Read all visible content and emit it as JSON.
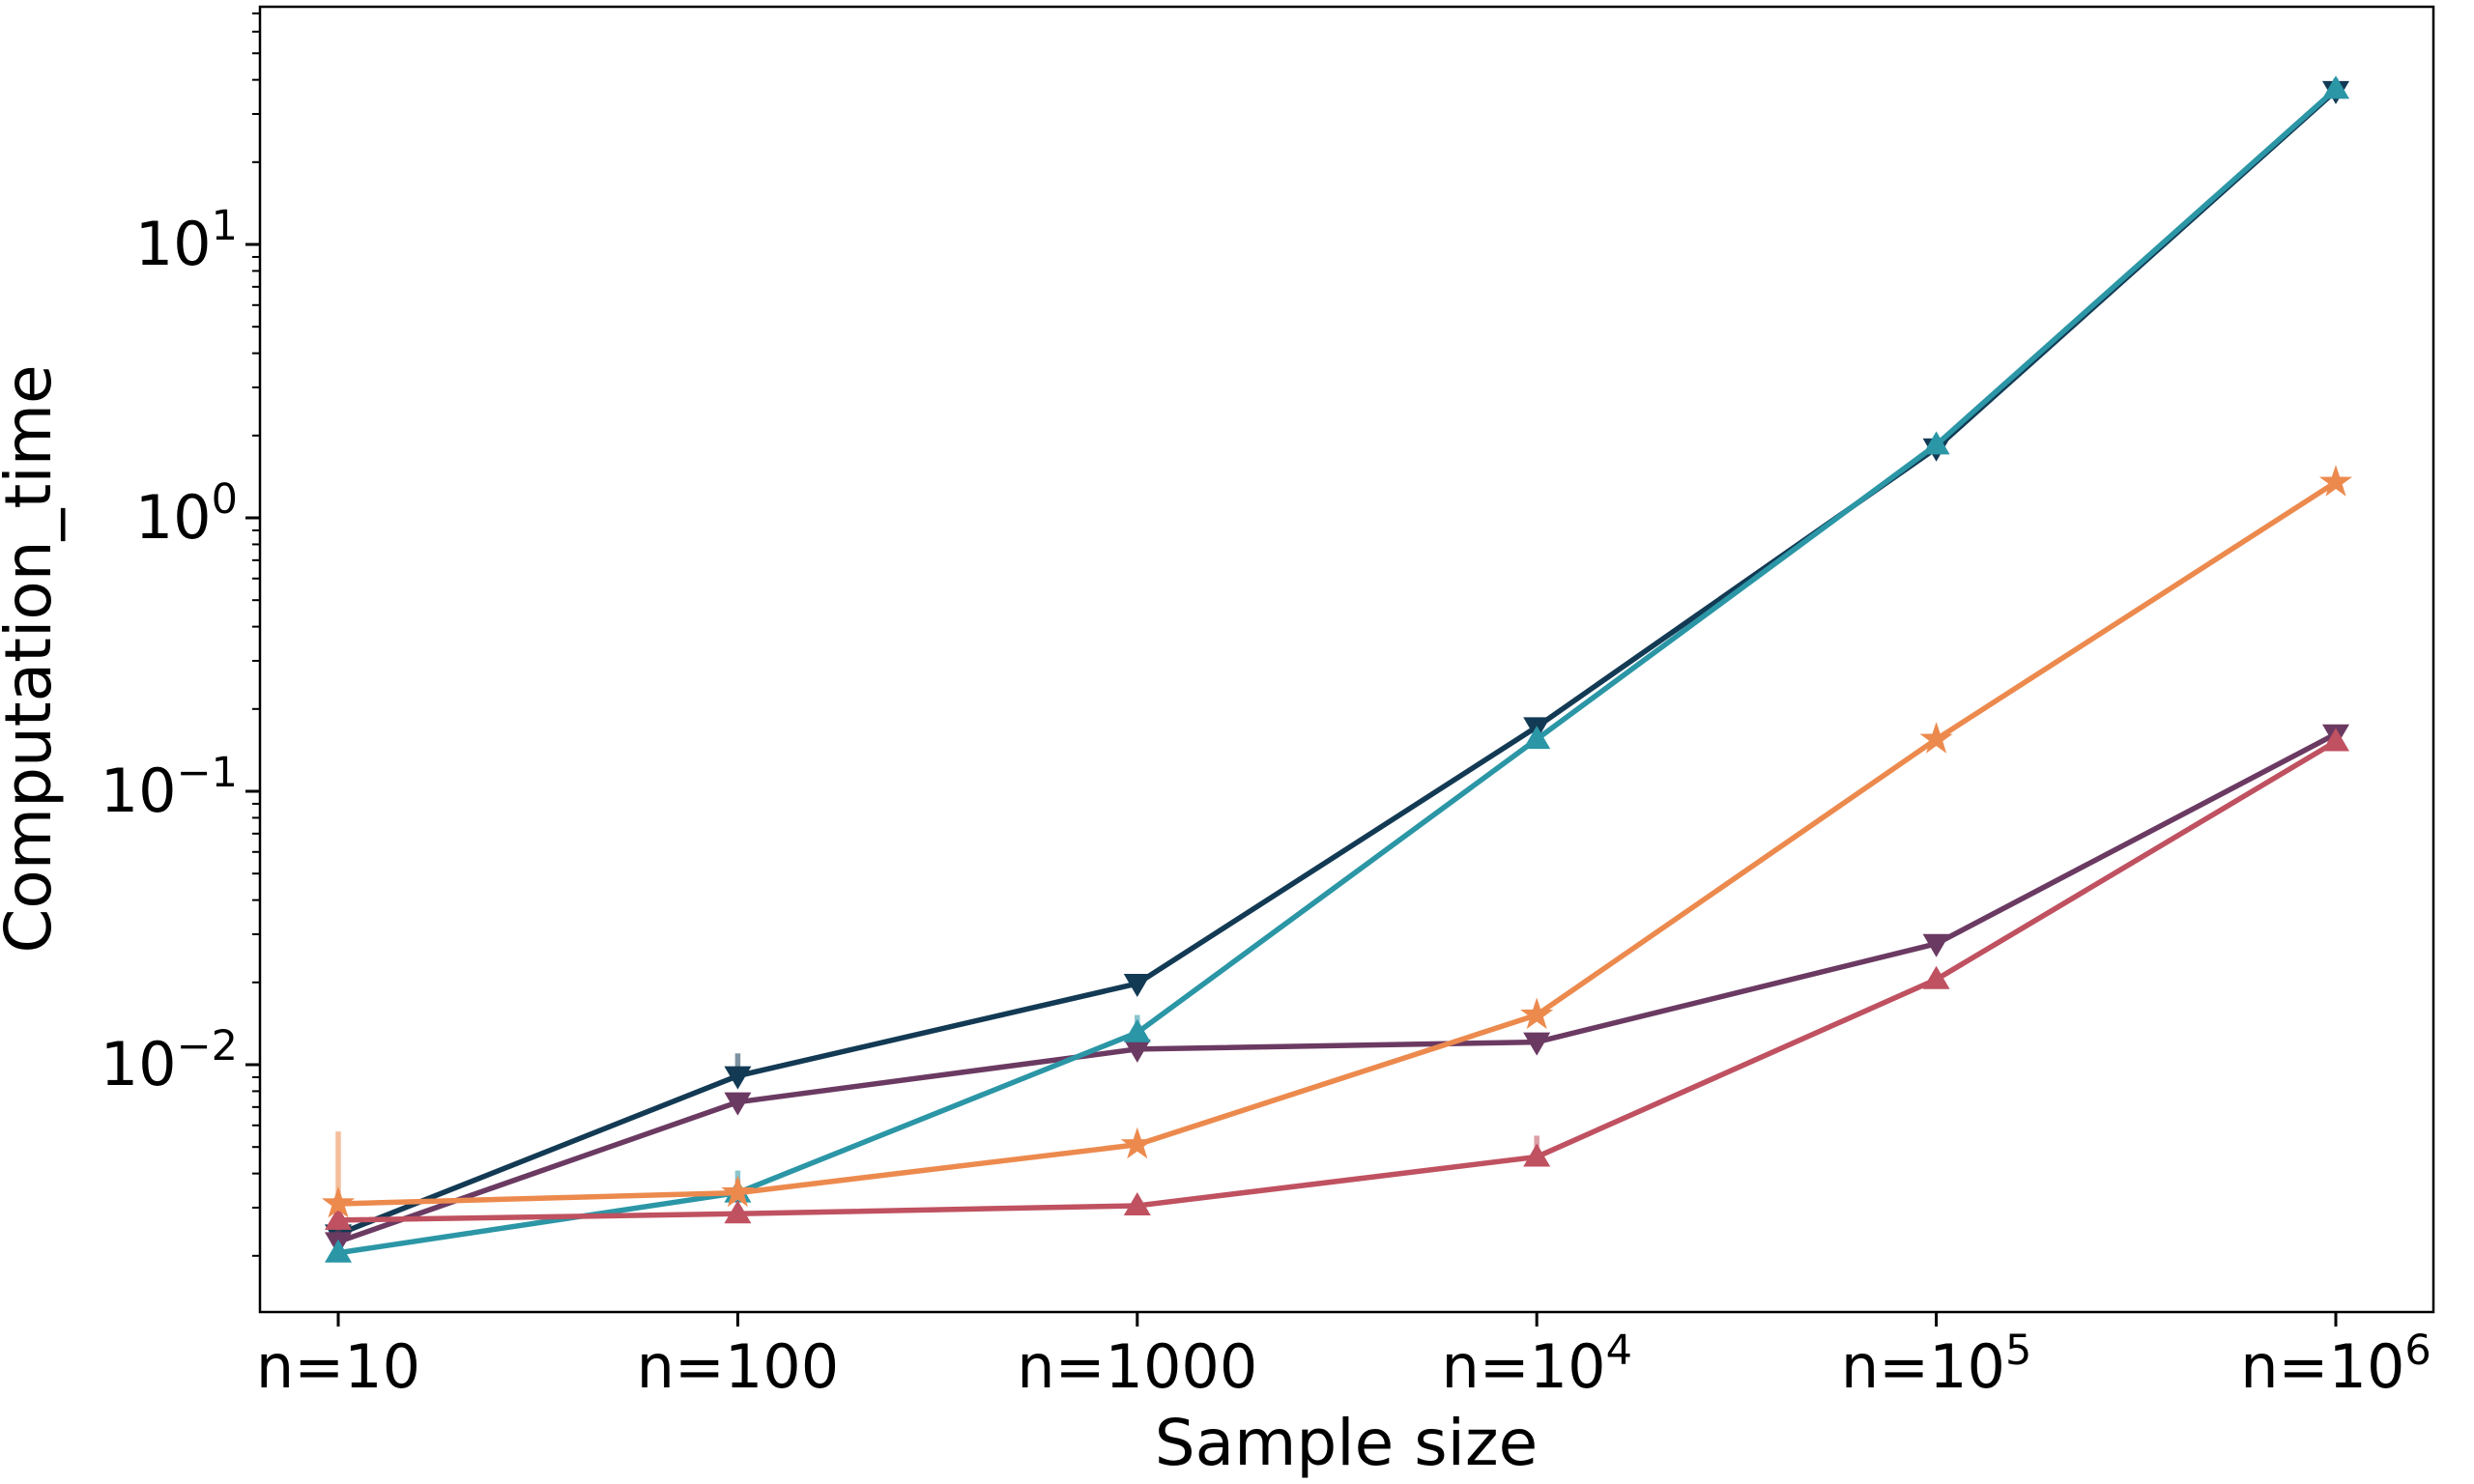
{
  "figure": {
    "background": "#ffffff",
    "xlabel": "Sample size",
    "ylabel": "Computation_time"
  },
  "chart_data": {
    "type": "line",
    "title": "",
    "xlabel": "Sample size",
    "ylabel": "Computation_time",
    "x_scale": "categorical-log-spaced",
    "y_scale": "log",
    "ylim": [
      0.00125,
      74
    ],
    "grid": false,
    "legend": "none",
    "categories": [
      "n=10",
      "n=100",
      "n=1000",
      "n=10^4",
      "n=10^5",
      "n=10^6"
    ],
    "x_tick_labels": [
      {
        "text": "n=10",
        "sup": ""
      },
      {
        "text": "n=100",
        "sup": ""
      },
      {
        "text": "n=1000",
        "sup": ""
      },
      {
        "text": "n=10",
        "sup": "4"
      },
      {
        "text": "n=10",
        "sup": "5"
      },
      {
        "text": "n=10",
        "sup": "6"
      }
    ],
    "y_tick_labels": [
      {
        "text": "10",
        "sup": "1",
        "value": 10
      },
      {
        "text": "10",
        "sup": "0",
        "value": 1
      },
      {
        "text": "10",
        "sup": "−1",
        "value": 0.1
      },
      {
        "text": "10",
        "sup": "−2",
        "value": 0.01
      }
    ],
    "series": [
      {
        "name": "navy-triangle-down-series",
        "color": "#133a54",
        "marker": "triangle-down",
        "values": [
          0.0024,
          0.0091,
          0.0198,
          0.172,
          1.8,
          36.5
        ],
        "err_up": [
          0.0002,
          0.0019,
          0.0012,
          0.006,
          0.06,
          2.0
        ]
      },
      {
        "name": "plum-triangle-down-series",
        "color": "#6b3a62",
        "marker": "triangle-down",
        "values": [
          0.00225,
          0.0073,
          0.0114,
          0.0121,
          0.0277,
          0.162
        ],
        "err_up": [
          0.0003,
          0.0004,
          0.0007,
          0.001,
          0.0018,
          0.006
        ]
      },
      {
        "name": "teal-triangle-up-series",
        "color": "#2b96a6",
        "marker": "triangle-up",
        "values": [
          0.00205,
          0.0034,
          0.0131,
          0.155,
          1.85,
          37.0
        ],
        "err_up": [
          0.00015,
          0.0007,
          0.0021,
          0.005,
          0.07,
          3.5
        ]
      },
      {
        "name": "maroon-triangle-up-series",
        "color": "#bf5160",
        "marker": "triangle-up",
        "values": [
          0.0027,
          0.00285,
          0.00305,
          0.0046,
          0.0205,
          0.152
        ],
        "err_up": [
          0.0002,
          0.00015,
          0.0002,
          0.0009,
          0.0012,
          0.005
        ]
      },
      {
        "name": "orange-star-series",
        "color": "#ec8a4e",
        "marker": "star",
        "values": [
          0.0031,
          0.0034,
          0.0051,
          0.0152,
          0.155,
          1.35
        ],
        "err_up": [
          0.0026,
          0.0004,
          0.0003,
          0.0013,
          0.005,
          0.04
        ]
      }
    ]
  }
}
